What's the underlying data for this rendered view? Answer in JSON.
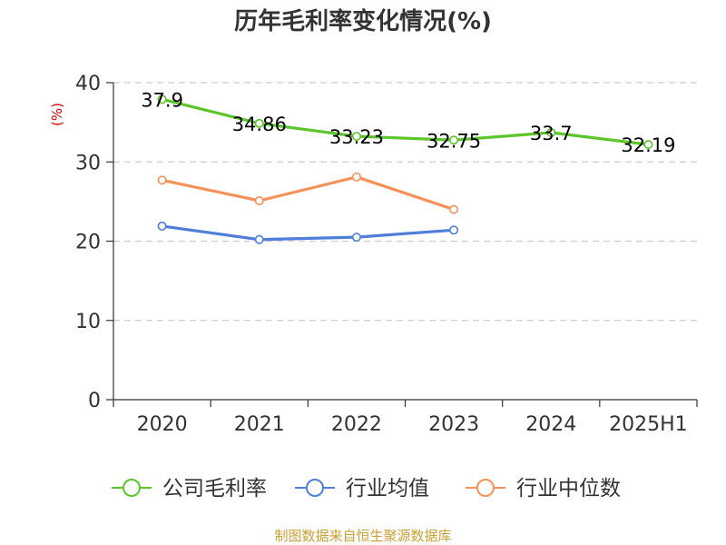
{
  "chart_data": {
    "type": "line",
    "title": "历年毛利率变化情况(%)",
    "ylabel": "(%)",
    "xlabel": "",
    "categories": [
      "2020",
      "2021",
      "2022",
      "2023",
      "2024",
      "2025H1"
    ],
    "ylim": [
      0,
      40
    ],
    "yticks": [
      0,
      10,
      20,
      30,
      40
    ],
    "grid": true,
    "legend_position": "bottom",
    "series": [
      {
        "name": "公司毛利率",
        "color": "#5cc52a",
        "values": [
          37.9,
          34.86,
          33.23,
          32.75,
          33.7,
          32.19
        ],
        "labels": [
          "37.9",
          "34.86",
          "33.23",
          "32.75",
          "33.7",
          "32.19"
        ]
      },
      {
        "name": "行业均值",
        "color": "#4f7fdb",
        "values": [
          21.9,
          20.2,
          20.5,
          21.4,
          null,
          null
        ]
      },
      {
        "name": "行业中位数",
        "color": "#f79159",
        "values": [
          27.7,
          25.1,
          28.1,
          24.0,
          null,
          null
        ]
      }
    ]
  },
  "footer": {
    "source": "制图数据来自恒生聚源数据库"
  }
}
